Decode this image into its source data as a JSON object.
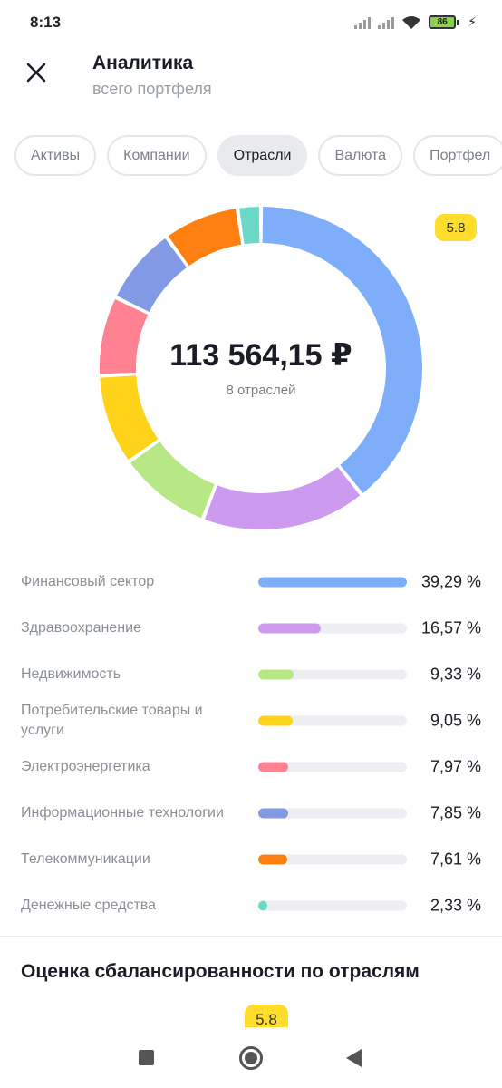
{
  "status": {
    "time": "8:13",
    "battery": "86"
  },
  "header": {
    "title": "Аналитика",
    "subtitle": "всего портфеля"
  },
  "tabs": [
    {
      "label": "Активы",
      "active": false
    },
    {
      "label": "Компании",
      "active": false
    },
    {
      "label": "Отрасли",
      "active": true
    },
    {
      "label": "Валюта",
      "active": false
    },
    {
      "label": "Портфел",
      "active": false
    }
  ],
  "score_badge": "5.8",
  "donut": {
    "total": "113 564,15 ₽",
    "count_label": "8 отраслей"
  },
  "sectors": [
    {
      "name": "Финансовый сектор",
      "percent_label": "39,29 %",
      "value": 39.29,
      "color": "#7eaefa"
    },
    {
      "name": "Здравоохранение",
      "percent_label": "16,57 %",
      "value": 16.57,
      "color": "#cc9bf0"
    },
    {
      "name": "Недвижимость",
      "percent_label": "9,33 %",
      "value": 9.33,
      "color": "#b7e885"
    },
    {
      "name": "Потребительские товары и услуги",
      "percent_label": "9,05 %",
      "value": 9.05,
      "color": "#ffd31a"
    },
    {
      "name": "Электроэнергетика",
      "percent_label": "7,97 %",
      "value": 7.97,
      "color": "#ff8293"
    },
    {
      "name": "Информационные технологии",
      "percent_label": "7,85 %",
      "value": 7.85,
      "color": "#8299e6"
    },
    {
      "name": "Телекоммуникации",
      "percent_label": "7,61 %",
      "value": 7.61,
      "color": "#ff7f10"
    },
    {
      "name": "Денежные средства",
      "percent_label": "2,33 %",
      "value": 2.33,
      "color": "#6ad9c6"
    }
  ],
  "balance": {
    "title": "Оценка сбалансированности по отраслям",
    "score": "5.8"
  }
}
